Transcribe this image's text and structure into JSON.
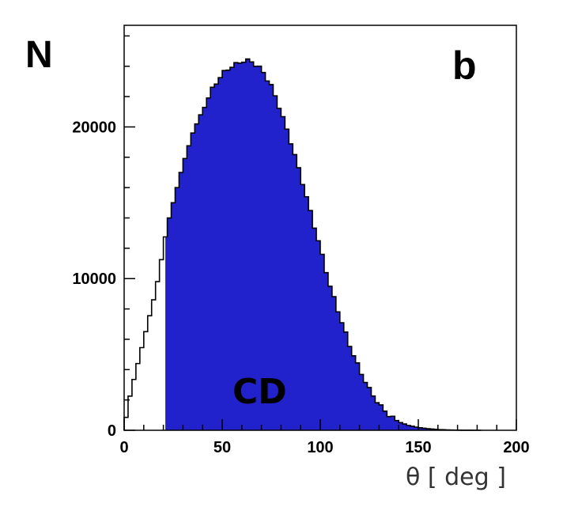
{
  "chart_data": {
    "type": "histogram",
    "ylabel": "N",
    "xlabel": "θ [ deg ]",
    "panel_label": "b",
    "region_label": "CD",
    "xlim": [
      0,
      200
    ],
    "ylim": [
      0,
      26700
    ],
    "x_ticks": [
      0,
      50,
      100,
      150,
      200
    ],
    "y_ticks": [
      0,
      10000,
      20000
    ],
    "fill_color": "#2222cc",
    "outline_color": "#000000",
    "shaded_region": [
      21,
      200
    ],
    "bin_width": 2,
    "points": [
      [
        0,
        0
      ],
      [
        2,
        1700
      ],
      [
        4,
        2800
      ],
      [
        6,
        3900
      ],
      [
        8,
        4900
      ],
      [
        10,
        6000
      ],
      [
        12,
        7000
      ],
      [
        14,
        8100
      ],
      [
        16,
        9100
      ],
      [
        18,
        10500
      ],
      [
        20,
        12000
      ],
      [
        22,
        13500
      ],
      [
        25,
        15000
      ],
      [
        30,
        17500
      ],
      [
        35,
        19600
      ],
      [
        40,
        21100
      ],
      [
        45,
        22500
      ],
      [
        50,
        23500
      ],
      [
        55,
        24000
      ],
      [
        60,
        24300
      ],
      [
        62,
        24400
      ],
      [
        65,
        24300
      ],
      [
        70,
        23800
      ],
      [
        75,
        22700
      ],
      [
        80,
        21000
      ],
      [
        85,
        19000
      ],
      [
        90,
        16800
      ],
      [
        95,
        14400
      ],
      [
        100,
        12000
      ],
      [
        105,
        9500
      ],
      [
        110,
        7500
      ],
      [
        115,
        5600
      ],
      [
        120,
        4000
      ],
      [
        125,
        2700
      ],
      [
        130,
        1700
      ],
      [
        135,
        1000
      ],
      [
        140,
        550
      ],
      [
        145,
        320
      ],
      [
        150,
        180
      ],
      [
        155,
        100
      ],
      [
        160,
        50
      ],
      [
        165,
        25
      ],
      [
        170,
        10
      ],
      [
        175,
        3
      ],
      [
        180,
        0
      ]
    ]
  }
}
